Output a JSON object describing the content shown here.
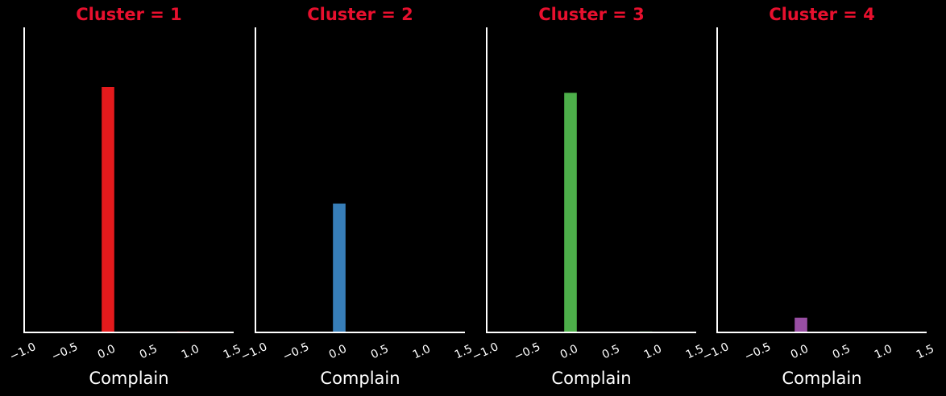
{
  "chart_data": [
    {
      "type": "bar",
      "title": "Cluster = 1",
      "xlabel": "Complain",
      "ylabel": "",
      "xlim": [
        -1.0,
        1.5
      ],
      "x_ticks": [
        "−1.0",
        "−0.5",
        "0.0",
        "0.5",
        "1.0",
        "1.5"
      ],
      "bins": [
        0.0,
        0.9
      ],
      "values": [
        1,
        0.005
      ],
      "color": "#e41a1c"
    },
    {
      "type": "bar",
      "title": "Cluster = 2",
      "xlabel": "Complain",
      "ylabel": "",
      "xlim": [
        -1.0,
        1.5
      ],
      "x_ticks": [
        "−1.0",
        "−0.5",
        "0.0",
        "0.5",
        "1.0",
        "1.5"
      ],
      "bins": [
        0.0,
        0.9
      ],
      "values": [
        0.525,
        0.002
      ],
      "color": "#377eb8"
    },
    {
      "type": "bar",
      "title": "Cluster = 3",
      "xlabel": "Complain",
      "ylabel": "",
      "xlim": [
        -1.0,
        1.5
      ],
      "x_ticks": [
        "−1.0",
        "−0.5",
        "0.0",
        "0.5",
        "1.0",
        "1.5"
      ],
      "bins": [
        0.0,
        0.9
      ],
      "values": [
        0.976,
        0.005
      ],
      "color": "#4daf4a"
    },
    {
      "type": "bar",
      "title": "Cluster = 4",
      "xlabel": "Complain",
      "ylabel": "",
      "xlim": [
        -1.0,
        1.5
      ],
      "x_ticks": [
        "−1.0",
        "−0.5",
        "0.0",
        "0.5",
        "1.0",
        "1.5"
      ],
      "bins": [
        0.0
      ],
      "values": [
        0.06
      ],
      "color": "#984ea3"
    }
  ]
}
